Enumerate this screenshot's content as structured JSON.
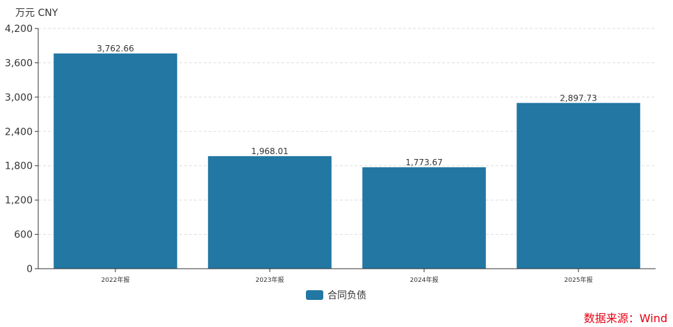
{
  "chart_data": {
    "type": "bar",
    "unit_label": "万元  CNY",
    "categories": [
      "2022年报",
      "2023年报",
      "2024年报",
      "2025年报"
    ],
    "series": [
      {
        "name": "合同负债",
        "values": [
          3762.66,
          1968.01,
          1773.67,
          2897.73
        ],
        "labels": [
          "3,762.66",
          "1,968.01",
          "1,773.67",
          "2,897.73"
        ]
      }
    ],
    "ylim": [
      0,
      4200
    ],
    "yticks": [
      0,
      600,
      1200,
      1800,
      2400,
      3000,
      3600,
      4200
    ],
    "ytick_labels": [
      "0",
      "600",
      "1,200",
      "1,800",
      "2,400",
      "3,000",
      "3,600",
      "4,200"
    ],
    "grid": true,
    "legend_position": "bottom",
    "colors": {
      "bar": "#2277a3",
      "source": "#e60012"
    }
  },
  "source": "数据来源：Wind"
}
